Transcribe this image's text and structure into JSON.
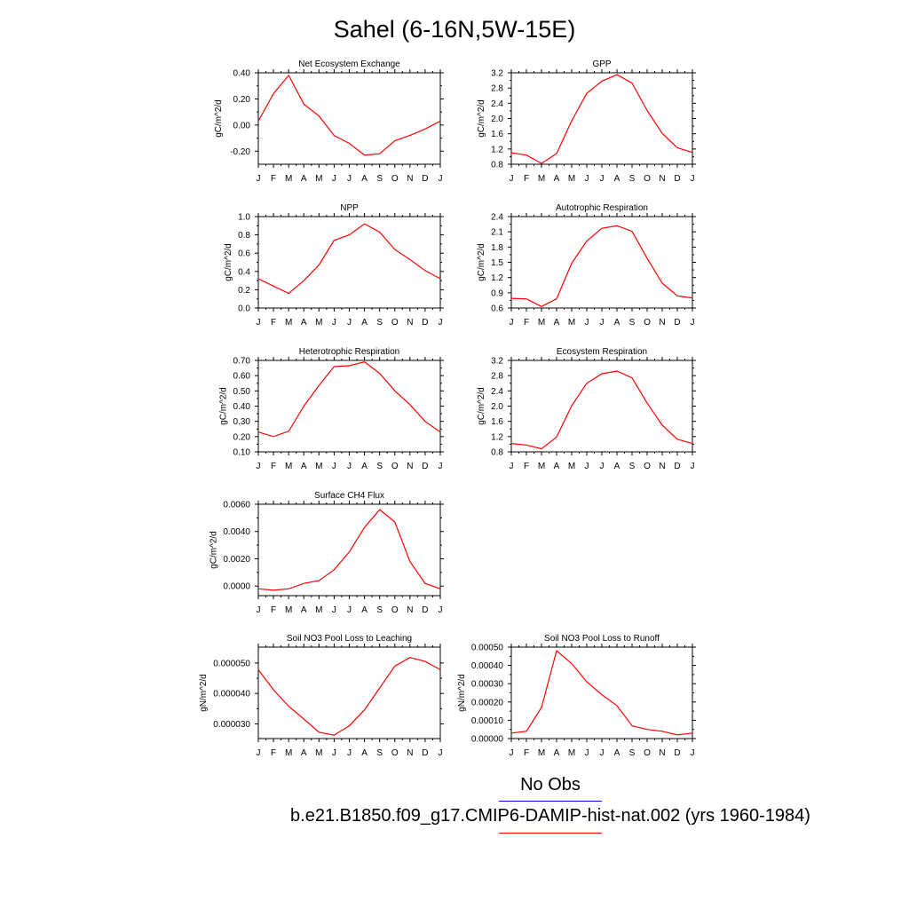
{
  "title": "Sahel (6-16N,5W-15E)",
  "colors": {
    "model_line": "#ff0000",
    "obs_line": "#0000ff",
    "axis": "#000000"
  },
  "legend": {
    "obs_label": "No Obs",
    "case_label": "b.e21.B1850.f09_g17.CMIP6-DAMIP-hist-nat.002 (yrs 1960-1984)"
  },
  "chart_data": [
    {
      "type": "line",
      "title": "Net Ecosystem Exchange",
      "ylabel": "gC/m^2/d",
      "categories": [
        "J",
        "F",
        "M",
        "A",
        "M",
        "J",
        "J",
        "A",
        "S",
        "O",
        "N",
        "D",
        "J"
      ],
      "values": [
        0.03,
        0.24,
        0.38,
        0.16,
        0.07,
        -0.08,
        -0.14,
        -0.23,
        -0.22,
        -0.12,
        -0.08,
        -0.03,
        0.03
      ],
      "ylim": [
        -0.3,
        0.4
      ],
      "yticks": [
        "-0.20",
        "0.00",
        "0.20",
        "0.40"
      ]
    },
    {
      "type": "line",
      "title": "GPP",
      "ylabel": "gC/m^2/d",
      "categories": [
        "J",
        "F",
        "M",
        "A",
        "M",
        "J",
        "J",
        "A",
        "S",
        "O",
        "N",
        "D",
        "J"
      ],
      "values": [
        1.1,
        1.04,
        0.82,
        1.08,
        1.94,
        2.66,
        2.98,
        3.15,
        2.93,
        2.21,
        1.61,
        1.23,
        1.11
      ],
      "ylim": [
        0.8,
        3.2
      ],
      "yticks": [
        "0.8",
        "1.2",
        "1.6",
        "2.0",
        "2.4",
        "2.8",
        "3.2"
      ]
    },
    {
      "type": "line",
      "title": "NPP",
      "ylabel": "gC/m^2/d",
      "categories": [
        "J",
        "F",
        "M",
        "A",
        "M",
        "J",
        "J",
        "A",
        "S",
        "O",
        "N",
        "D",
        "J"
      ],
      "values": [
        0.32,
        0.24,
        0.16,
        0.3,
        0.47,
        0.74,
        0.8,
        0.92,
        0.83,
        0.64,
        0.53,
        0.41,
        0.32
      ],
      "ylim": [
        0.0,
        1.0
      ],
      "yticks": [
        "0.0",
        "0.2",
        "0.4",
        "0.6",
        "0.8",
        "1.0"
      ]
    },
    {
      "type": "line",
      "title": "Autotrophic Respiration",
      "ylabel": "gC/m^2/d",
      "categories": [
        "J",
        "F",
        "M",
        "A",
        "M",
        "J",
        "J",
        "A",
        "S",
        "O",
        "N",
        "D",
        "J"
      ],
      "values": [
        0.79,
        0.78,
        0.63,
        0.78,
        1.48,
        1.92,
        2.17,
        2.22,
        2.11,
        1.58,
        1.09,
        0.84,
        0.8
      ],
      "ylim": [
        0.6,
        2.4
      ],
      "yticks": [
        "0.6",
        "0.9",
        "1.2",
        "1.5",
        "1.8",
        "2.1",
        "2.4"
      ]
    },
    {
      "type": "line",
      "title": "Heterotrophic Respiration",
      "ylabel": "gC/m^2/d",
      "categories": [
        "J",
        "F",
        "M",
        "A",
        "M",
        "J",
        "J",
        "A",
        "S",
        "O",
        "N",
        "D",
        "J"
      ],
      "values": [
        0.23,
        0.2,
        0.235,
        0.4,
        0.535,
        0.66,
        0.665,
        0.69,
        0.615,
        0.5,
        0.41,
        0.3,
        0.23
      ],
      "ylim": [
        0.1,
        0.7
      ],
      "yticks": [
        "0.10",
        "0.20",
        "0.30",
        "0.40",
        "0.50",
        "0.60",
        "0.70"
      ]
    },
    {
      "type": "line",
      "title": "Ecosystem Respiration",
      "ylabel": "gC/m^2/d",
      "categories": [
        "J",
        "F",
        "M",
        "A",
        "M",
        "J",
        "J",
        "A",
        "S",
        "O",
        "N",
        "D",
        "J"
      ],
      "values": [
        1.02,
        0.98,
        0.88,
        1.19,
        2.01,
        2.6,
        2.85,
        2.92,
        2.74,
        2.08,
        1.5,
        1.13,
        1.02
      ],
      "ylim": [
        0.8,
        3.2
      ],
      "yticks": [
        "0.8",
        "1.2",
        "1.6",
        "2.0",
        "2.4",
        "2.8",
        "3.2"
      ]
    },
    {
      "type": "line",
      "title": "Surface CH4 Flux",
      "ylabel": "gC/m^2/d",
      "categories": [
        "J",
        "F",
        "M",
        "A",
        "M",
        "J",
        "J",
        "A",
        "S",
        "O",
        "N",
        "D",
        "J"
      ],
      "values": [
        -0.0002,
        -0.0003,
        -0.0002,
        0.0002,
        0.0004,
        0.0012,
        0.0025,
        0.0043,
        0.0056,
        0.0047,
        0.0018,
        0.0002,
        -0.0002
      ],
      "ylim": [
        -0.0007,
        0.006
      ],
      "yticks": [
        "0.0000",
        "0.0020",
        "0.0040",
        "0.0060"
      ]
    },
    {
      "type": "line",
      "title": "Soil NO3 Pool Loss to Leaching",
      "ylabel": "gN/m^2/d",
      "categories": [
        "J",
        "F",
        "M",
        "A",
        "M",
        "J",
        "J",
        "A",
        "S",
        "O",
        "N",
        "D",
        "J"
      ],
      "values": [
        4.78e-05,
        4.12e-05,
        3.58e-05,
        3.16e-05,
        2.73e-05,
        2.63e-05,
        2.94e-05,
        3.46e-05,
        4.18e-05,
        4.9e-05,
        5.18e-05,
        5.05e-05,
        4.78e-05
      ],
      "ylim": [
        2.52e-05,
        5.52e-05
      ],
      "yticks": [
        "0.000030",
        "0.000040",
        "0.000050"
      ]
    },
    {
      "type": "line",
      "title": "Soil NO3 Pool Loss to Runoff",
      "ylabel": "gN/m^2/d",
      "categories": [
        "J",
        "F",
        "M",
        "A",
        "M",
        "J",
        "J",
        "A",
        "S",
        "O",
        "N",
        "D",
        "J"
      ],
      "values": [
        3e-05,
        4e-05,
        0.00017,
        0.00048,
        0.00041,
        0.00031,
        0.00024,
        0.00018,
        7e-05,
        5e-05,
        4e-05,
        2e-05,
        3e-05
      ],
      "ylim": [
        0.0,
        0.0005
      ],
      "yticks": [
        "0.00000",
        "0.00010",
        "0.00020",
        "0.00030",
        "0.00040",
        "0.00050"
      ]
    }
  ]
}
